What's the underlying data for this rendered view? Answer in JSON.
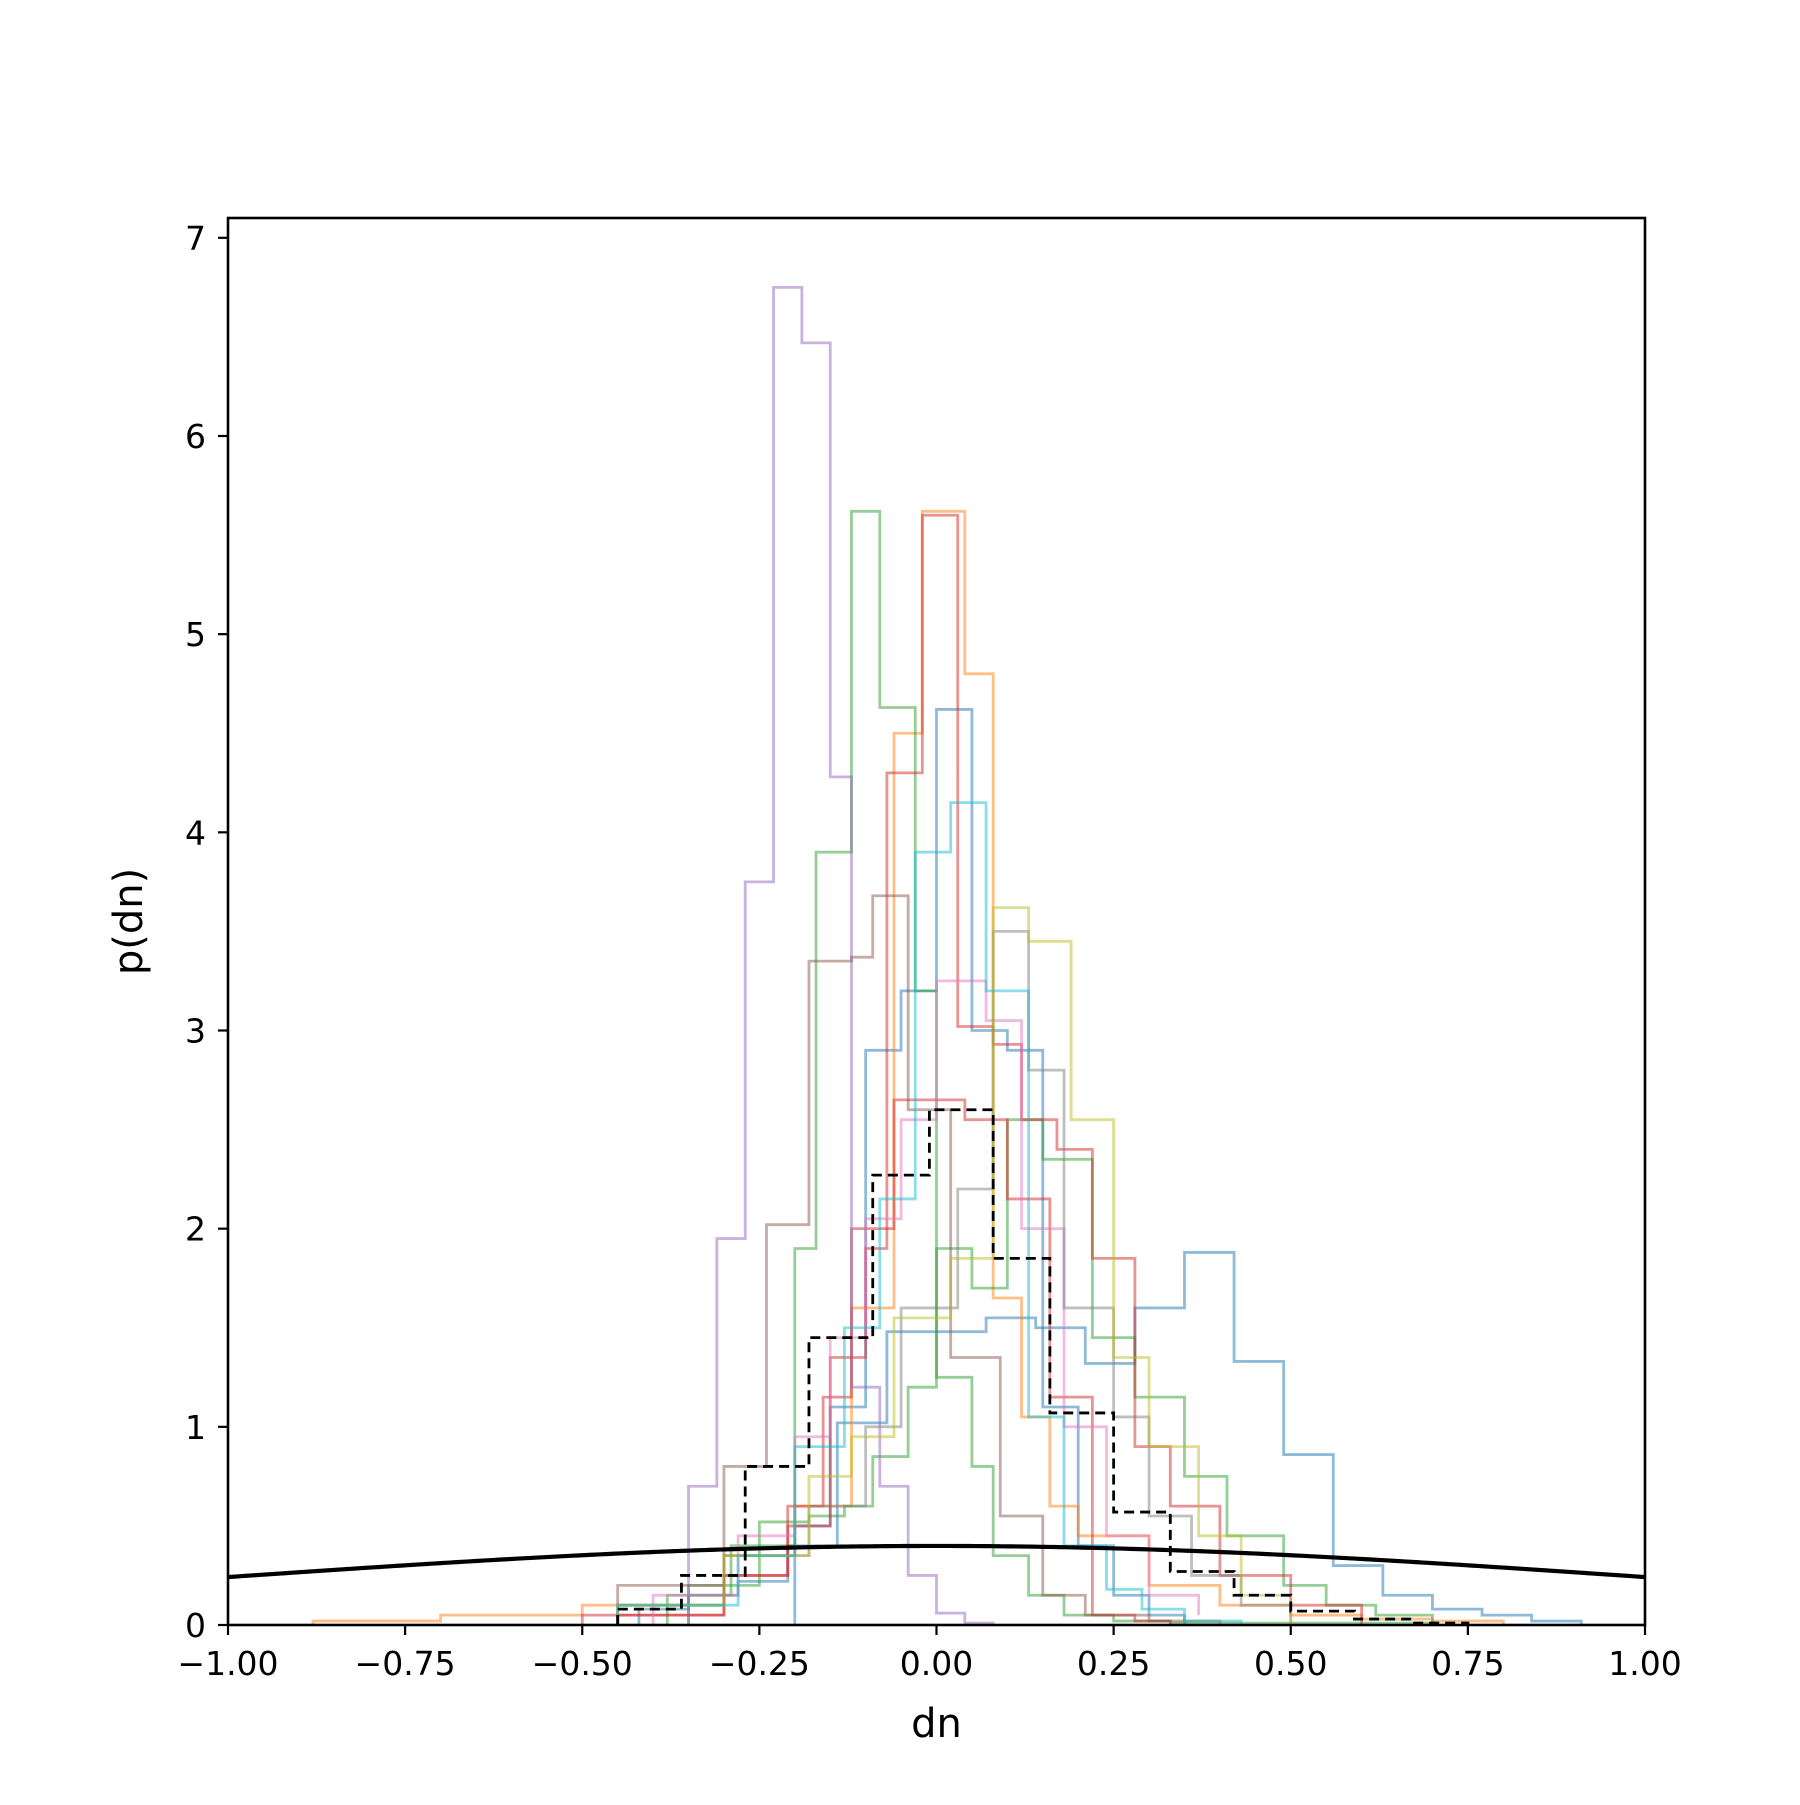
{
  "chart_data": {
    "type": "histogram",
    "xlabel": "dn",
    "ylabel": "p(dn)",
    "xlim": [
      -1.0,
      1.0
    ],
    "ylim": [
      0,
      7.1
    ],
    "xticks": [
      -1.0,
      -0.75,
      -0.5,
      -0.25,
      0.0,
      0.25,
      0.5,
      0.75,
      1.0
    ],
    "xtick_labels": [
      "−1.00",
      "−0.75",
      "−0.50",
      "−0.25",
      "0.00",
      "0.25",
      "0.50",
      "0.75",
      "1.00"
    ],
    "yticks": [
      0,
      1,
      2,
      3,
      4,
      5,
      6,
      7
    ],
    "ytick_labels": [
      "0",
      "1",
      "2",
      "3",
      "4",
      "5",
      "6",
      "7"
    ],
    "grid": false,
    "legend": false,
    "series": [
      {
        "color": "#1f77b4",
        "style": "step",
        "alpha": 0.5,
        "edges": [
          -0.42,
          -0.35,
          -0.28,
          -0.21,
          -0.14,
          -0.07,
          0.0,
          0.07,
          0.14,
          0.21,
          0.28,
          0.35,
          0.42,
          0.49,
          0.56,
          0.63,
          0.7,
          0.77,
          0.84,
          0.91
        ],
        "values": [
          0.08,
          0.15,
          0.22,
          0.4,
          1.02,
          1.48,
          1.48,
          1.55,
          1.5,
          1.32,
          1.6,
          1.88,
          1.33,
          0.86,
          0.3,
          0.15,
          0.08,
          0.05,
          0.02
        ]
      },
      {
        "color": "#1f77b4",
        "style": "step",
        "alpha": 0.5,
        "edges": [
          -0.2,
          -0.15,
          -0.1,
          -0.05,
          0.0,
          0.05,
          0.1,
          0.15,
          0.2,
          0.25,
          0.3,
          0.35
        ],
        "values": [
          0.5,
          1.1,
          2.9,
          3.2,
          4.62,
          3.0,
          2.9,
          1.1,
          0.4,
          0.15,
          0.05
        ]
      },
      {
        "color": "#ff7f0e",
        "style": "step",
        "alpha": 0.5,
        "edges": [
          -0.88,
          -0.7,
          -0.5,
          -0.3,
          -0.2,
          -0.12,
          -0.06,
          -0.02,
          0.04,
          0.08,
          0.12,
          0.16,
          0.2,
          0.3,
          0.4,
          0.5,
          0.6,
          0.7,
          0.8
        ],
        "values": [
          0.02,
          0.05,
          0.1,
          0.35,
          0.6,
          1.6,
          4.5,
          5.62,
          4.8,
          1.65,
          1.05,
          0.6,
          0.45,
          0.2,
          0.1,
          0.05,
          0.03,
          0.02
        ]
      },
      {
        "color": "#2ca02c",
        "style": "step",
        "alpha": 0.5,
        "edges": [
          -0.38,
          -0.29,
          -0.2,
          -0.17,
          -0.12,
          -0.08,
          -0.03,
          0.0,
          0.05,
          0.08,
          0.13,
          0.18,
          0.25,
          0.33,
          0.4,
          0.47,
          0.55,
          0.6,
          0.7
        ],
        "values": [
          0.15,
          0.4,
          1.9,
          3.9,
          5.62,
          4.63,
          3.2,
          1.25,
          0.8,
          0.35,
          0.15,
          0.05,
          0.02,
          0.01,
          0.01,
          0.01,
          0.01,
          0.01
        ]
      },
      {
        "color": "#2ca02c",
        "style": "step",
        "alpha": 0.5,
        "edges": [
          -0.35,
          -0.25,
          -0.18,
          -0.13,
          -0.09,
          -0.04,
          0.0,
          0.05,
          0.1,
          0.15,
          0.22,
          0.28,
          0.35,
          0.41,
          0.49,
          0.55,
          0.62,
          0.7
        ],
        "values": [
          0.2,
          0.52,
          0.55,
          0.6,
          0.85,
          1.2,
          1.9,
          1.7,
          2.55,
          2.35,
          1.45,
          1.15,
          0.75,
          0.45,
          0.2,
          0.1,
          0.05
        ]
      },
      {
        "color": "#d62728",
        "style": "step",
        "alpha": 0.5,
        "edges": [
          -0.5,
          -0.3,
          -0.21,
          -0.15,
          -0.1,
          -0.07,
          -0.02,
          0.03,
          0.08,
          0.12,
          0.17,
          0.22,
          0.28,
          0.33,
          0.4,
          0.5,
          0.6
        ],
        "values": [
          0.05,
          0.25,
          0.5,
          1.35,
          1.9,
          4.3,
          5.6,
          3.02,
          2.93,
          2.55,
          2.4,
          1.85,
          0.9,
          0.6,
          0.25,
          0.1
        ]
      },
      {
        "color": "#d62728",
        "style": "step",
        "alpha": 0.5,
        "edges": [
          -0.45,
          -0.3,
          -0.21,
          -0.16,
          -0.12,
          -0.06,
          0.04,
          0.1,
          0.16,
          0.22,
          0.28,
          0.33
        ],
        "values": [
          0.05,
          0.25,
          0.6,
          1.15,
          2.0,
          2.65,
          2.55,
          2.15,
          1.15,
          0.05,
          0.02
        ]
      },
      {
        "color": "#9467bd",
        "style": "step",
        "alpha": 0.5,
        "edges": [
          -0.35,
          -0.31,
          -0.27,
          -0.23,
          -0.19,
          -0.15,
          -0.12,
          -0.08,
          -0.04,
          0.0,
          0.04,
          0.08
        ],
        "values": [
          0.7,
          1.95,
          3.75,
          6.75,
          6.47,
          4.28,
          1.2,
          0.7,
          0.25,
          0.06,
          0.01
        ]
      },
      {
        "color": "#8c564b",
        "style": "step",
        "alpha": 0.5,
        "edges": [
          -0.45,
          -0.3,
          -0.24,
          -0.18,
          -0.12,
          -0.09,
          -0.04,
          0.02,
          0.09,
          0.15,
          0.21,
          0.3,
          0.4
        ],
        "values": [
          0.2,
          0.8,
          2.02,
          3.35,
          3.37,
          3.68,
          2.6,
          1.35,
          0.55,
          0.15,
          0.05,
          0.02
        ]
      },
      {
        "color": "#e377c2",
        "style": "step",
        "alpha": 0.5,
        "edges": [
          -0.4,
          -0.28,
          -0.2,
          -0.15,
          -0.1,
          -0.05,
          0.0,
          0.07,
          0.12,
          0.18,
          0.24,
          0.3,
          0.37
        ],
        "values": [
          0.15,
          0.45,
          0.95,
          1.45,
          2.05,
          2.55,
          3.25,
          3.05,
          2.0,
          1.0,
          0.45,
          0.15,
          0.05
        ]
      },
      {
        "color": "#7f7f7f",
        "style": "step",
        "alpha": 0.5,
        "edges": [
          -0.45,
          -0.3,
          -0.18,
          -0.1,
          -0.05,
          0.03,
          0.08,
          0.13,
          0.18,
          0.25,
          0.3,
          0.36,
          0.43,
          0.5
        ],
        "values": [
          0.1,
          0.35,
          0.6,
          1.0,
          1.6,
          2.2,
          3.5,
          2.8,
          1.6,
          1.05,
          0.55,
          0.25,
          0.1
        ]
      },
      {
        "color": "#bcbd22",
        "style": "step",
        "alpha": 0.5,
        "edges": [
          -0.45,
          -0.3,
          -0.18,
          -0.12,
          -0.06,
          0.02,
          0.08,
          0.13,
          0.19,
          0.25,
          0.3,
          0.37,
          0.43,
          0.5
        ],
        "values": [
          0.1,
          0.35,
          0.75,
          0.95,
          1.55,
          1.85,
          3.62,
          3.45,
          2.55,
          1.35,
          0.9,
          0.45,
          0.15
        ]
      },
      {
        "color": "#17becf",
        "style": "step",
        "alpha": 0.5,
        "edges": [
          -0.45,
          -0.28,
          -0.2,
          -0.13,
          -0.08,
          -0.03,
          0.02,
          0.07,
          0.13,
          0.18,
          0.24,
          0.29,
          0.35,
          0.43
        ],
        "values": [
          0.1,
          0.35,
          0.9,
          1.5,
          2.15,
          3.9,
          4.15,
          3.2,
          1.05,
          0.4,
          0.18,
          0.08,
          0.02
        ]
      },
      {
        "color": "#000000",
        "style": "dashed-step",
        "alpha": 1.0,
        "edges": [
          -0.45,
          -0.36,
          -0.27,
          -0.18,
          -0.09,
          -0.01,
          0.08,
          0.16,
          0.25,
          0.33,
          0.42,
          0.5,
          0.59,
          0.67,
          0.75
        ],
        "values": [
          0.08,
          0.25,
          0.8,
          1.45,
          2.27,
          2.6,
          1.85,
          1.07,
          0.57,
          0.27,
          0.15,
          0.07,
          0.03,
          0.01
        ]
      },
      {
        "color": "#000000",
        "style": "curve",
        "alpha": 1.0,
        "function": "normal_pdf",
        "mean": 0,
        "std": 1
      }
    ]
  }
}
